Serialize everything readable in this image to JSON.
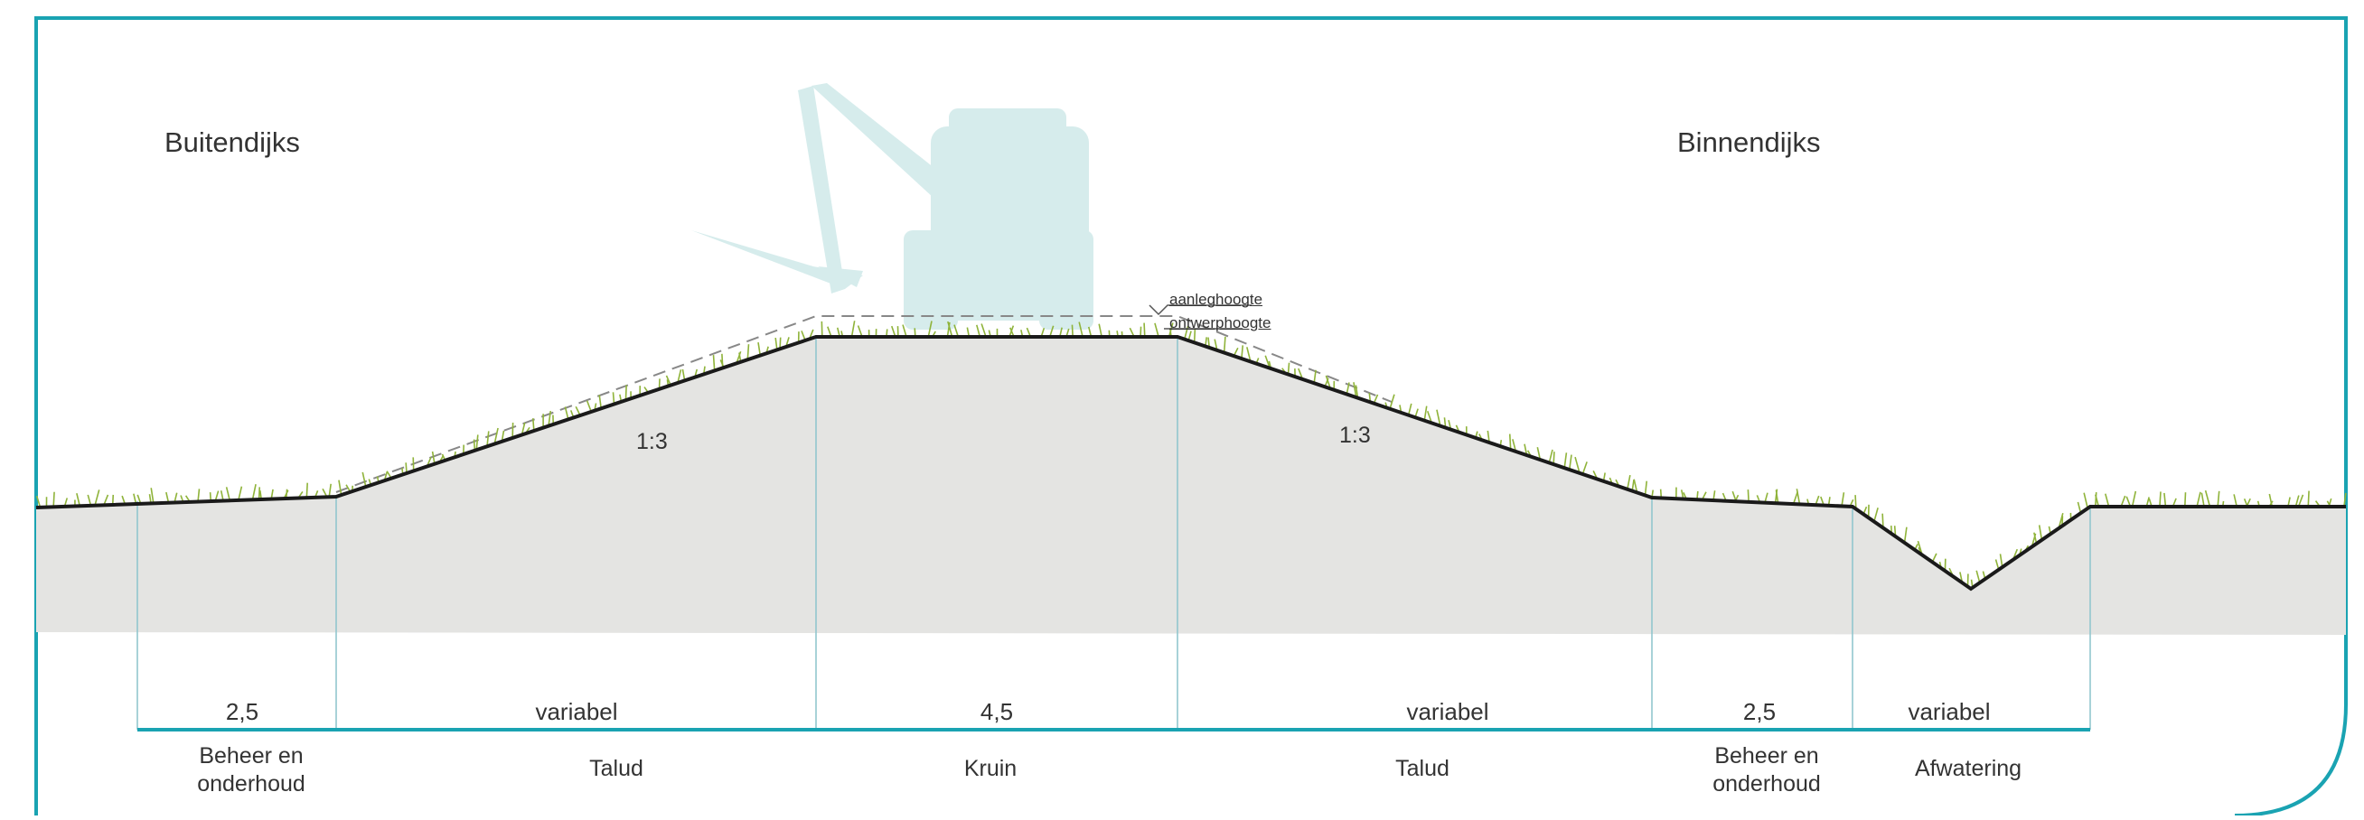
{
  "labels": {
    "outer": "Buitendijks",
    "inner": "Binnendijks",
    "slope_outer": "1:3",
    "slope_inner": "1:3",
    "construction_height": "aanleghoogte",
    "design_height": "ontwerphoogte"
  },
  "measurements": [
    {
      "value": "2,5",
      "zone": "Beheer en onderhoud"
    },
    {
      "value": "variabel",
      "zone": "Talud"
    },
    {
      "value": "4,5",
      "zone": "Kruin"
    },
    {
      "value": "variabel",
      "zone": "Talud"
    },
    {
      "value": "2,5",
      "zone": "Beheer en onderhoud"
    },
    {
      "value": "variabel",
      "zone": "Afwatering"
    }
  ],
  "zones_wrapped": [
    {
      "line1": "Beheer en",
      "line2": "onderhoud"
    },
    {
      "line1": "Talud",
      "line2": ""
    },
    {
      "line1": "Kruin",
      "line2": ""
    },
    {
      "line1": "Talud",
      "line2": ""
    },
    {
      "line1": "Beheer en",
      "line2": "onderhoud"
    },
    {
      "line1": "Afwatering",
      "line2": ""
    }
  ],
  "colors": {
    "frame": "#1aa3b2",
    "ground": "#e4e4e2",
    "profile": "#1a1a1a",
    "grass": "#8fb33a",
    "machine": "#d6ecec",
    "divider": "#8cc4cc"
  },
  "icons": [
    "excavator-silhouette"
  ]
}
